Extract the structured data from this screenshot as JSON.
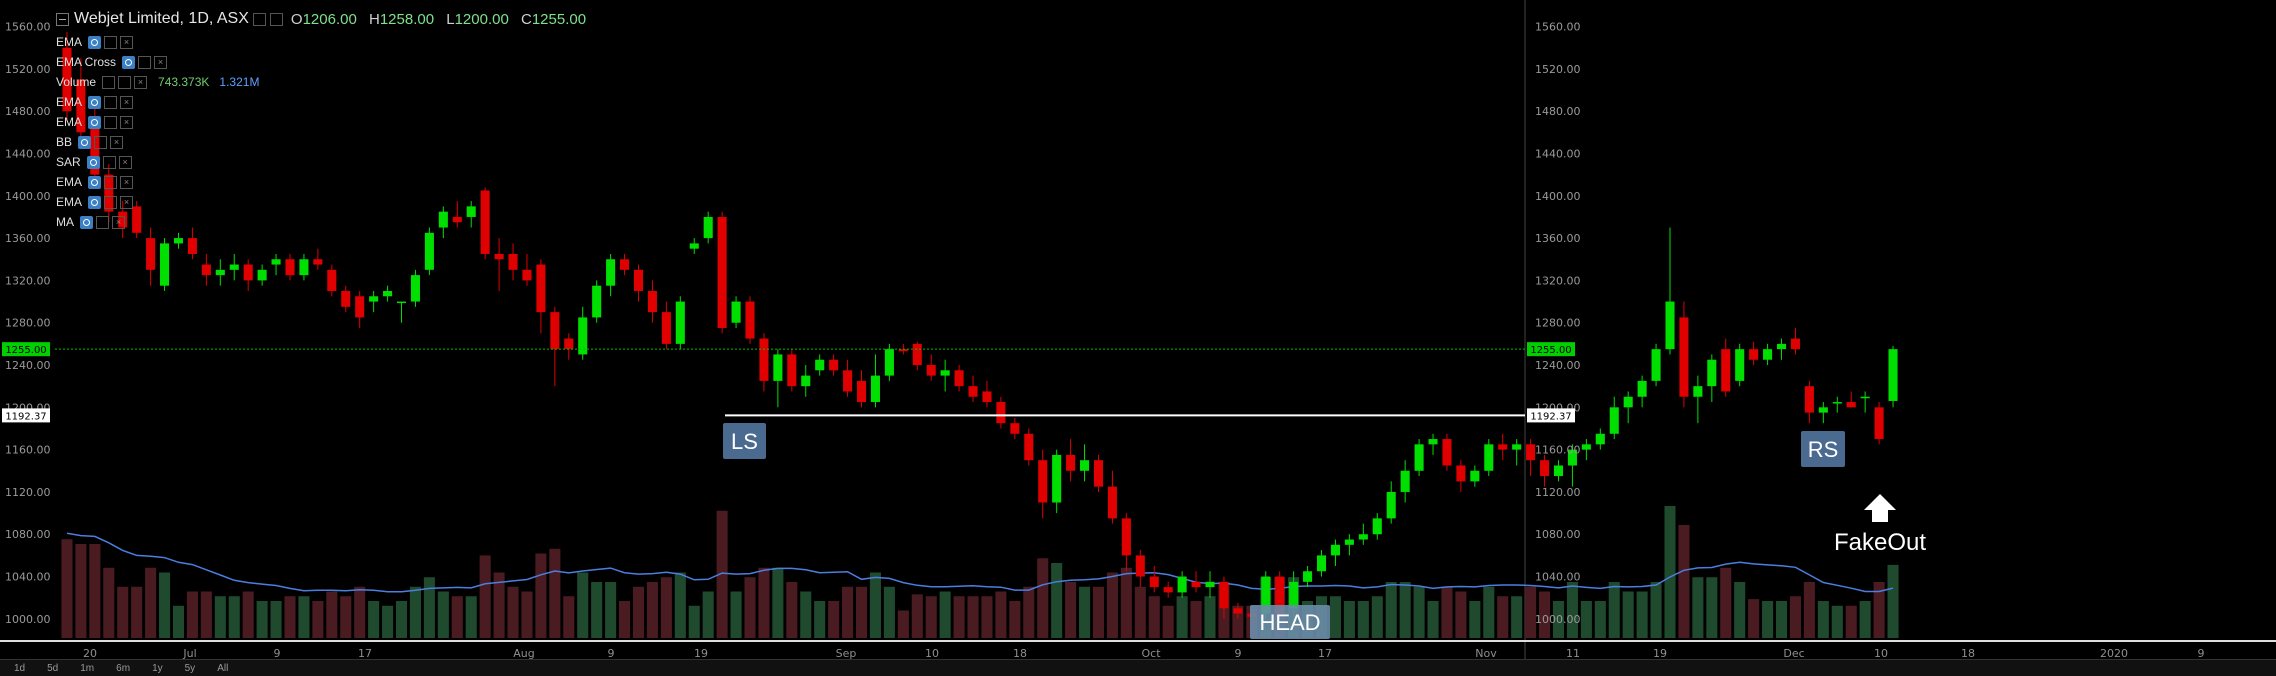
{
  "header": {
    "symbol": "Webjet Limited, 1D, ASX",
    "open_key": "O",
    "open": "1206.00",
    "high_key": "H",
    "high": "1258.00",
    "low_key": "L",
    "low": "1200.00",
    "close_key": "C",
    "close": "1255.00"
  },
  "indicators": [
    {
      "name": "EMA"
    },
    {
      "name": "EMA Cross"
    },
    {
      "name": "Volume",
      "v1": "743.373K",
      "v2": "1.321M"
    },
    {
      "name": "EMA"
    },
    {
      "name": "EMA"
    },
    {
      "name": "BB"
    },
    {
      "name": "SAR"
    },
    {
      "name": "EMA"
    },
    {
      "name": "EMA"
    },
    {
      "name": "MA"
    }
  ],
  "timeframes": [
    "1d",
    "5d",
    "1m",
    "6m",
    "1y",
    "5y",
    "All"
  ],
  "price_badges": {
    "current": "1255.00",
    "neckline": "1192.37"
  },
  "annotations": {
    "ls": "LS",
    "head": "HEAD",
    "rs": "RS",
    "fakeout": "FakeOut"
  },
  "colors": {
    "up": "#00e000",
    "down": "#e00000",
    "vol_up": "#1f4a2e",
    "vol_down": "#4a1c22",
    "vol_ma": "#4a7fe0",
    "neckline": "#ffffff",
    "price_line": "#00c000",
    "label_box": "#4a6a90"
  },
  "chart_data": {
    "type": "candlestick",
    "title": "Webjet Limited, 1D, ASX",
    "ylim": [
      980,
      1570
    ],
    "y_ticks": [
      1000,
      1040,
      1080,
      1120,
      1160,
      1200,
      1240,
      1280,
      1320,
      1360,
      1400,
      1440,
      1480,
      1520,
      1560
    ],
    "x_ticks": [
      "20",
      "Jul",
      "9",
      "17",
      "Aug",
      "9",
      "19",
      "Sep",
      "10",
      "18",
      "Oct",
      "9",
      "17",
      "Nov",
      "11",
      "19",
      "Dec",
      "10",
      "18",
      "2020",
      "9"
    ],
    "neckline": 1192.37,
    "current_price": 1255.0,
    "candles": [
      [
        1540,
        1555,
        1470,
        1480
      ],
      [
        1510,
        1530,
        1450,
        1460
      ],
      [
        1470,
        1490,
        1410,
        1420
      ],
      [
        1420,
        1430,
        1375,
        1385
      ],
      [
        1385,
        1395,
        1360,
        1370
      ],
      [
        1390,
        1395,
        1360,
        1365
      ],
      [
        1360,
        1370,
        1315,
        1330
      ],
      [
        1315,
        1360,
        1310,
        1355
      ],
      [
        1355,
        1365,
        1350,
        1360
      ],
      [
        1360,
        1370,
        1340,
        1345
      ],
      [
        1335,
        1345,
        1315,
        1325
      ],
      [
        1325,
        1340,
        1315,
        1330
      ],
      [
        1330,
        1345,
        1320,
        1335
      ],
      [
        1335,
        1340,
        1310,
        1320
      ],
      [
        1320,
        1335,
        1315,
        1330
      ],
      [
        1335,
        1345,
        1325,
        1340
      ],
      [
        1340,
        1345,
        1320,
        1325
      ],
      [
        1325,
        1345,
        1320,
        1340
      ],
      [
        1340,
        1350,
        1330,
        1335
      ],
      [
        1330,
        1335,
        1305,
        1310
      ],
      [
        1310,
        1315,
        1290,
        1295
      ],
      [
        1305,
        1310,
        1275,
        1285
      ],
      [
        1300,
        1310,
        1290,
        1305
      ],
      [
        1305,
        1315,
        1300,
        1310
      ],
      [
        1300,
        1300,
        1280,
        1300
      ],
      [
        1300,
        1330,
        1295,
        1325
      ],
      [
        1330,
        1370,
        1325,
        1365
      ],
      [
        1370,
        1390,
        1360,
        1385
      ],
      [
        1380,
        1395,
        1370,
        1375
      ],
      [
        1380,
        1395,
        1370,
        1390
      ],
      [
        1405,
        1408,
        1340,
        1345
      ],
      [
        1345,
        1360,
        1310,
        1340
      ],
      [
        1345,
        1355,
        1320,
        1330
      ],
      [
        1330,
        1345,
        1315,
        1320
      ],
      [
        1335,
        1340,
        1270,
        1290
      ],
      [
        1290,
        1295,
        1220,
        1255
      ],
      [
        1265,
        1270,
        1245,
        1255
      ],
      [
        1250,
        1295,
        1245,
        1285
      ],
      [
        1285,
        1320,
        1280,
        1315
      ],
      [
        1315,
        1345,
        1305,
        1340
      ],
      [
        1340,
        1345,
        1325,
        1330
      ],
      [
        1330,
        1335,
        1300,
        1310
      ],
      [
        1310,
        1320,
        1280,
        1290
      ],
      [
        1290,
        1300,
        1255,
        1260
      ],
      [
        1260,
        1305,
        1255,
        1300
      ],
      [
        1350,
        1360,
        1345,
        1355
      ],
      [
        1360,
        1385,
        1355,
        1380
      ],
      [
        1380,
        1385,
        1270,
        1275
      ],
      [
        1280,
        1305,
        1275,
        1300
      ],
      [
        1300,
        1305,
        1260,
        1265
      ],
      [
        1265,
        1270,
        1215,
        1225
      ],
      [
        1225,
        1255,
        1200,
        1250
      ],
      [
        1250,
        1255,
        1215,
        1220
      ],
      [
        1220,
        1240,
        1210,
        1230
      ],
      [
        1235,
        1250,
        1230,
        1245
      ],
      [
        1245,
        1250,
        1230,
        1235
      ],
      [
        1235,
        1245,
        1210,
        1215
      ],
      [
        1225,
        1235,
        1200,
        1205
      ],
      [
        1205,
        1250,
        1200,
        1230
      ],
      [
        1230,
        1260,
        1225,
        1255
      ],
      [
        1255,
        1260,
        1250,
        1253
      ],
      [
        1260,
        1262,
        1235,
        1240
      ],
      [
        1240,
        1250,
        1225,
        1230
      ],
      [
        1230,
        1245,
        1215,
        1235
      ],
      [
        1235,
        1240,
        1215,
        1220
      ],
      [
        1220,
        1230,
        1205,
        1210
      ],
      [
        1215,
        1225,
        1200,
        1205
      ],
      [
        1205,
        1210,
        1180,
        1185
      ],
      [
        1185,
        1190,
        1170,
        1175
      ],
      [
        1175,
        1180,
        1145,
        1150
      ],
      [
        1150,
        1160,
        1095,
        1110
      ],
      [
        1110,
        1160,
        1100,
        1155
      ],
      [
        1155,
        1170,
        1130,
        1140
      ],
      [
        1140,
        1165,
        1130,
        1150
      ],
      [
        1150,
        1155,
        1120,
        1125
      ],
      [
        1125,
        1140,
        1090,
        1095
      ],
      [
        1095,
        1100,
        1045,
        1060
      ],
      [
        1060,
        1065,
        1030,
        1040
      ],
      [
        1040,
        1050,
        1025,
        1030
      ],
      [
        1030,
        1035,
        1020,
        1025
      ],
      [
        1025,
        1045,
        1020,
        1040
      ],
      [
        1035,
        1045,
        1025,
        1030
      ],
      [
        1030,
        1045,
        1020,
        1035
      ],
      [
        1035,
        1040,
        1000,
        1010
      ],
      [
        1010,
        1015,
        1000,
        1005
      ],
      [
        1005,
        1010,
        995,
        1002
      ],
      [
        1005,
        1045,
        1000,
        1040
      ],
      [
        1040,
        1045,
        1000,
        1005
      ],
      [
        1010,
        1045,
        1000,
        1035
      ],
      [
        1035,
        1050,
        1030,
        1045
      ],
      [
        1045,
        1065,
        1040,
        1060
      ],
      [
        1060,
        1075,
        1050,
        1070
      ],
      [
        1070,
        1080,
        1060,
        1075
      ],
      [
        1075,
        1090,
        1070,
        1080
      ],
      [
        1080,
        1100,
        1075,
        1095
      ],
      [
        1095,
        1130,
        1090,
        1120
      ],
      [
        1120,
        1150,
        1110,
        1140
      ],
      [
        1140,
        1170,
        1135,
        1165
      ],
      [
        1165,
        1175,
        1155,
        1170
      ],
      [
        1170,
        1175,
        1140,
        1145
      ],
      [
        1145,
        1150,
        1120,
        1130
      ],
      [
        1130,
        1145,
        1125,
        1140
      ],
      [
        1140,
        1170,
        1135,
        1165
      ],
      [
        1165,
        1175,
        1150,
        1160
      ],
      [
        1160,
        1170,
        1145,
        1165
      ],
      [
        1165,
        1170,
        1135,
        1150
      ],
      [
        1150,
        1155,
        1125,
        1135
      ],
      [
        1135,
        1150,
        1130,
        1145
      ],
      [
        1145,
        1165,
        1125,
        1160
      ],
      [
        1160,
        1170,
        1150,
        1165
      ],
      [
        1165,
        1180,
        1160,
        1175
      ],
      [
        1175,
        1210,
        1170,
        1200
      ],
      [
        1200,
        1215,
        1185,
        1210
      ],
      [
        1210,
        1230,
        1200,
        1225
      ],
      [
        1225,
        1260,
        1220,
        1255
      ],
      [
        1255,
        1370,
        1250,
        1300
      ],
      [
        1285,
        1300,
        1200,
        1210
      ],
      [
        1210,
        1230,
        1185,
        1220
      ],
      [
        1220,
        1250,
        1205,
        1245
      ],
      [
        1255,
        1265,
        1210,
        1215
      ],
      [
        1225,
        1260,
        1220,
        1255
      ],
      [
        1255,
        1262,
        1240,
        1245
      ],
      [
        1245,
        1260,
        1240,
        1255
      ],
      [
        1255,
        1265,
        1245,
        1260
      ],
      [
        1265,
        1275,
        1250,
        1255
      ],
      [
        1220,
        1225,
        1185,
        1195
      ],
      [
        1195,
        1205,
        1185,
        1200
      ],
      [
        1205,
        1210,
        1195,
        1205
      ],
      [
        1205,
        1215,
        1200,
        1200
      ],
      [
        1210,
        1215,
        1195,
        1210
      ],
      [
        1200,
        1205,
        1165,
        1170
      ],
      [
        1206,
        1258,
        1200,
        1255
      ]
    ],
    "volume_ma_hint": [
      1012,
      1015,
      1012,
      1011,
      1013,
      1015,
      1018,
      1012,
      1016,
      1014
    ]
  }
}
